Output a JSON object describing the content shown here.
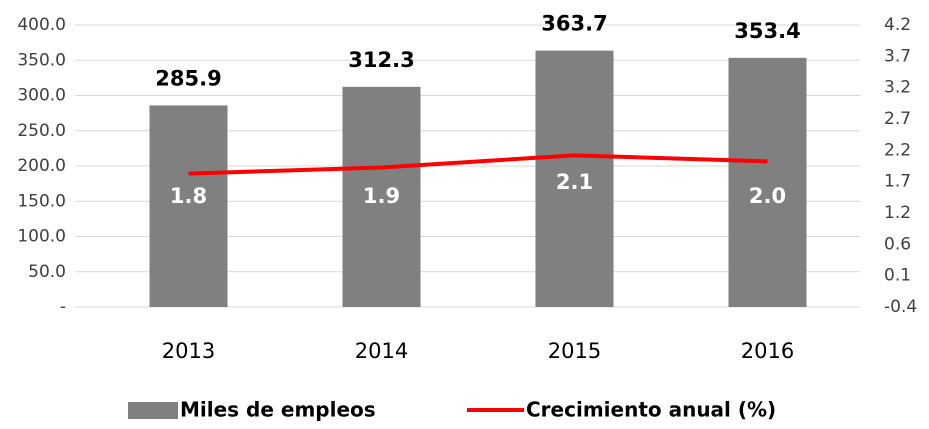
{
  "chart_data": {
    "type": "bar_line",
    "categories": [
      "2013",
      "2014",
      "2015",
      "2016"
    ],
    "series": [
      {
        "name": "Miles de empleos",
        "type": "bar",
        "color": "#808080",
        "values": [
          285.9,
          312.3,
          363.7,
          353.4
        ]
      },
      {
        "name": "Crecimiento anual (%)",
        "type": "line",
        "axis": "y2",
        "color": "#ff0000",
        "values": [
          1.8,
          1.9,
          2.1,
          2.0
        ],
        "value_labels": [
          "1.8",
          "1.9",
          "2.1",
          "2.0"
        ]
      }
    ],
    "ylim": [
      0,
      400
    ],
    "yticks": [
      {
        "value": 0,
        "label": "-"
      },
      {
        "value": 50,
        "label": "50.0"
      },
      {
        "value": 100,
        "label": "100.0"
      },
      {
        "value": 150,
        "label": "150.0"
      },
      {
        "value": 200,
        "label": "200.0"
      },
      {
        "value": 250,
        "label": "250.0"
      },
      {
        "value": 300,
        "label": "300.0"
      },
      {
        "value": 350,
        "label": "350.0"
      },
      {
        "value": 400,
        "label": "400.0"
      }
    ],
    "y2lim": [
      -0.395,
      4.2445
    ],
    "y2ticks": [
      {
        "value": -0.395,
        "label": "-0.4"
      },
      {
        "value": 0.1205,
        "label": "0.1"
      },
      {
        "value": 0.636,
        "label": "0.6"
      },
      {
        "value": 1.1515,
        "label": "1.2"
      },
      {
        "value": 1.667,
        "label": "1.7"
      },
      {
        "value": 2.1825,
        "label": "2.2"
      },
      {
        "value": 2.698,
        "label": "2.7"
      },
      {
        "value": 3.2135,
        "label": "3.2"
      },
      {
        "value": 3.729,
        "label": "3.7"
      },
      {
        "value": 4.2445,
        "label": "4.2"
      }
    ],
    "grid": true,
    "legend": "bottom"
  }
}
